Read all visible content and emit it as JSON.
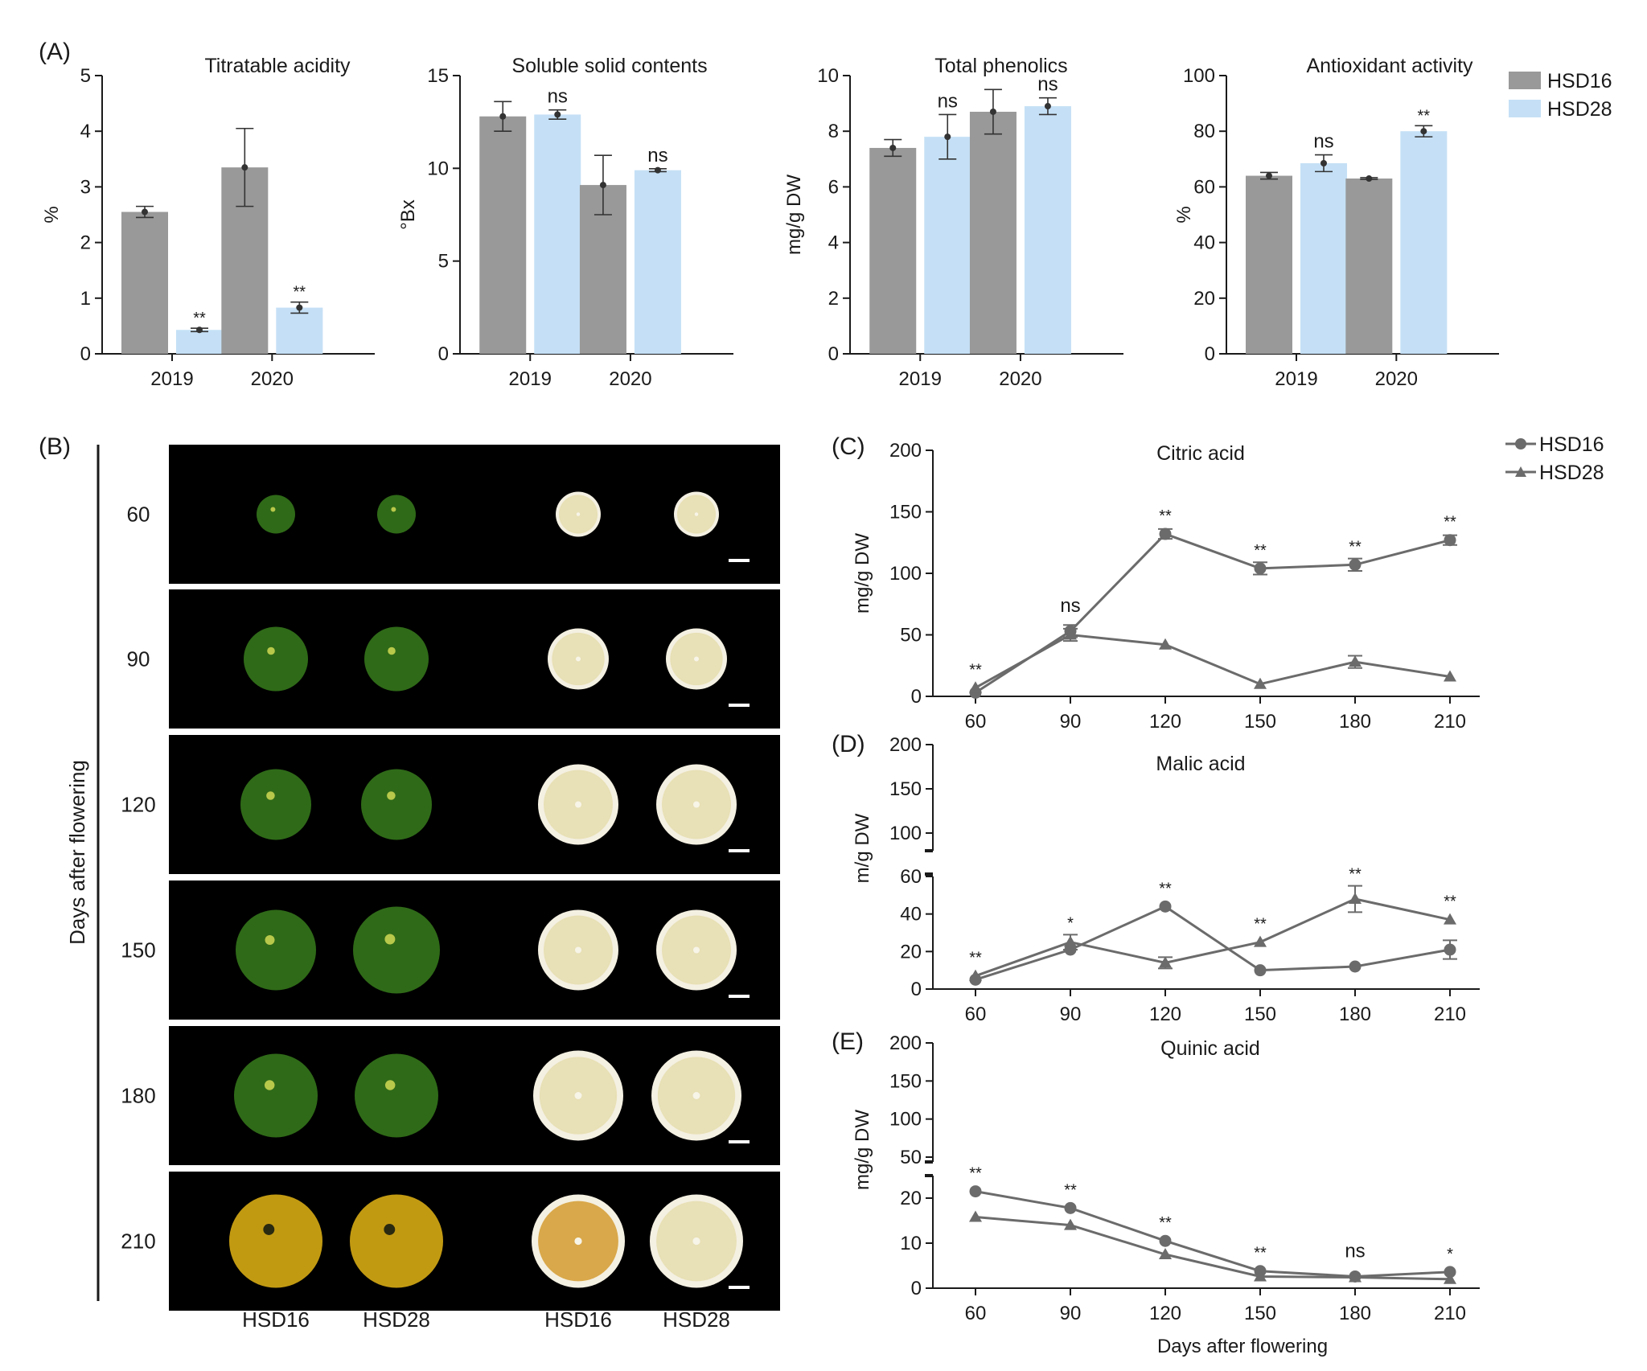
{
  "colors": {
    "hsd16_bar": "#999999",
    "hsd28_bar": "#c5e0f6",
    "axis": "#1a1a1a",
    "line": "#6b6b6b",
    "photo_bg": "#000000",
    "peel_green": "#2f6a18",
    "peel_orange": "#c29a12",
    "flesh_pale": "#e8e0b6",
    "flesh_orange": "#d9a84a",
    "scale_bar": "#ffffff"
  },
  "panel_labels": {
    "a": "(A)",
    "b": "(B)",
    "c": "(C)",
    "d": "(D)",
    "e": "(E)"
  },
  "legend_a": {
    "hsd16": "HSD16",
    "hsd28": "HSD28"
  },
  "legend_c": {
    "hsd16": "HSD16",
    "hsd28": "HSD28"
  },
  "photos": {
    "ylabel": "Days after flowering",
    "rows": [
      "60",
      "90",
      "120",
      "150",
      "180",
      "210"
    ],
    "col_labels": [
      "HSD16",
      "HSD28",
      "HSD16",
      "HSD28"
    ],
    "icon": "citrus-fruit-photo"
  },
  "chart_data": [
    {
      "type": "bar",
      "panel": "A1",
      "title": "Titratable acidity",
      "ylabel": "%",
      "xlabel": "",
      "categories": [
        "2019",
        "2020"
      ],
      "ylim": [
        0,
        5
      ],
      "yticks": [
        0,
        1,
        2,
        3,
        4,
        5
      ],
      "series": [
        {
          "name": "HSD16",
          "values": [
            2.55,
            3.35
          ],
          "errors": [
            0.1,
            0.7
          ],
          "sig": [
            "",
            ""
          ]
        },
        {
          "name": "HSD28",
          "values": [
            0.43,
            0.83
          ],
          "errors": [
            0.03,
            0.1
          ],
          "sig": [
            "**",
            "**"
          ]
        }
      ]
    },
    {
      "type": "bar",
      "panel": "A2",
      "title": "Soluble solid contents",
      "ylabel": "°Bx",
      "xlabel": "",
      "categories": [
        "2019",
        "2020"
      ],
      "ylim": [
        0,
        15
      ],
      "yticks": [
        0,
        5,
        10,
        15
      ],
      "series": [
        {
          "name": "HSD16",
          "values": [
            12.8,
            9.1
          ],
          "errors": [
            0.8,
            1.6
          ],
          "sig": [
            "",
            ""
          ]
        },
        {
          "name": "HSD28",
          "values": [
            12.9,
            9.9
          ],
          "errors": [
            0.25,
            0.08
          ],
          "sig": [
            "ns",
            "ns"
          ]
        }
      ]
    },
    {
      "type": "bar",
      "panel": "A3",
      "title": "Total phenolics",
      "ylabel": "mg/g DW",
      "xlabel": "",
      "categories": [
        "2019",
        "2020"
      ],
      "ylim": [
        0,
        10
      ],
      "yticks": [
        0,
        2,
        4,
        6,
        8,
        10
      ],
      "series": [
        {
          "name": "HSD16",
          "values": [
            7.4,
            8.7
          ],
          "errors": [
            0.3,
            0.8
          ],
          "sig": [
            "",
            ""
          ]
        },
        {
          "name": "HSD28",
          "values": [
            7.8,
            8.9
          ],
          "errors": [
            0.8,
            0.3
          ],
          "sig": [
            "ns",
            "ns"
          ]
        }
      ]
    },
    {
      "type": "bar",
      "panel": "A4",
      "title": "Antioxidant activity",
      "ylabel": "%",
      "xlabel": "",
      "categories": [
        "2019",
        "2020"
      ],
      "ylim": [
        0,
        100
      ],
      "yticks": [
        0,
        20,
        40,
        60,
        80,
        100
      ],
      "series": [
        {
          "name": "HSD16",
          "values": [
            64,
            63
          ],
          "errors": [
            1.2,
            0.3
          ],
          "sig": [
            "",
            ""
          ]
        },
        {
          "name": "HSD28",
          "values": [
            68.5,
            80
          ],
          "errors": [
            3,
            2
          ],
          "sig": [
            "ns",
            "**"
          ]
        }
      ]
    },
    {
      "type": "line",
      "panel": "C",
      "title": "Citric acid",
      "ylabel": "mg/g DW",
      "xlabel": "",
      "x": [
        60,
        90,
        120,
        150,
        180,
        210
      ],
      "ylim": [
        0,
        200
      ],
      "yticks": [
        0,
        50,
        100,
        150,
        200
      ],
      "sig": [
        "**",
        "ns",
        "**",
        "**",
        "**",
        "**"
      ],
      "series": [
        {
          "name": "HSD16",
          "marker": "circle",
          "values": [
            3,
            53,
            132,
            104,
            107,
            127
          ],
          "errors": [
            0,
            5,
            4,
            5,
            5,
            4
          ]
        },
        {
          "name": "HSD28",
          "marker": "triangle",
          "values": [
            7,
            50,
            42,
            10,
            28,
            16
          ],
          "errors": [
            0,
            5,
            0,
            0,
            5,
            0
          ]
        }
      ]
    },
    {
      "type": "line",
      "panel": "D",
      "title": "Malic acid",
      "ylabel": "m/g DW",
      "xlabel": "",
      "x": [
        60,
        90,
        120,
        150,
        180,
        210
      ],
      "ylim": [
        0,
        200
      ],
      "yticks_lower": [
        0,
        20,
        40,
        60
      ],
      "yticks_upper": [
        100,
        150,
        200
      ],
      "sig": [
        "**",
        "*",
        "**",
        "**",
        "**",
        "**"
      ],
      "series": [
        {
          "name": "HSD16",
          "marker": "circle",
          "values": [
            5,
            21,
            44,
            10,
            12,
            21
          ],
          "errors": [
            0,
            0,
            0,
            0,
            0,
            5
          ]
        },
        {
          "name": "HSD28",
          "marker": "triangle",
          "values": [
            7,
            25,
            14,
            25,
            48,
            37
          ],
          "errors": [
            0,
            4,
            3,
            0,
            7,
            0
          ]
        }
      ]
    },
    {
      "type": "line",
      "panel": "E",
      "title": "Quinic acid",
      "ylabel": "mg/g DW",
      "xlabel": "Days after flowering",
      "x": [
        60,
        90,
        120,
        150,
        180,
        210
      ],
      "ylim": [
        0,
        200
      ],
      "yticks_lower": [
        0,
        10,
        20
      ],
      "yticks_upper": [
        50,
        100,
        150,
        200
      ],
      "sig": [
        "**",
        "**",
        "**",
        "**",
        "ns",
        "*"
      ],
      "series": [
        {
          "name": "HSD16",
          "marker": "circle",
          "values": [
            21.5,
            17.8,
            10.5,
            3.8,
            2.6,
            3.6
          ],
          "errors": [
            0,
            0,
            0,
            0,
            0,
            0
          ]
        },
        {
          "name": "HSD28",
          "marker": "triangle",
          "values": [
            15.8,
            14,
            7.5,
            2.6,
            2.4,
            2
          ],
          "errors": [
            0,
            0,
            0,
            0,
            0,
            0
          ]
        }
      ]
    }
  ]
}
